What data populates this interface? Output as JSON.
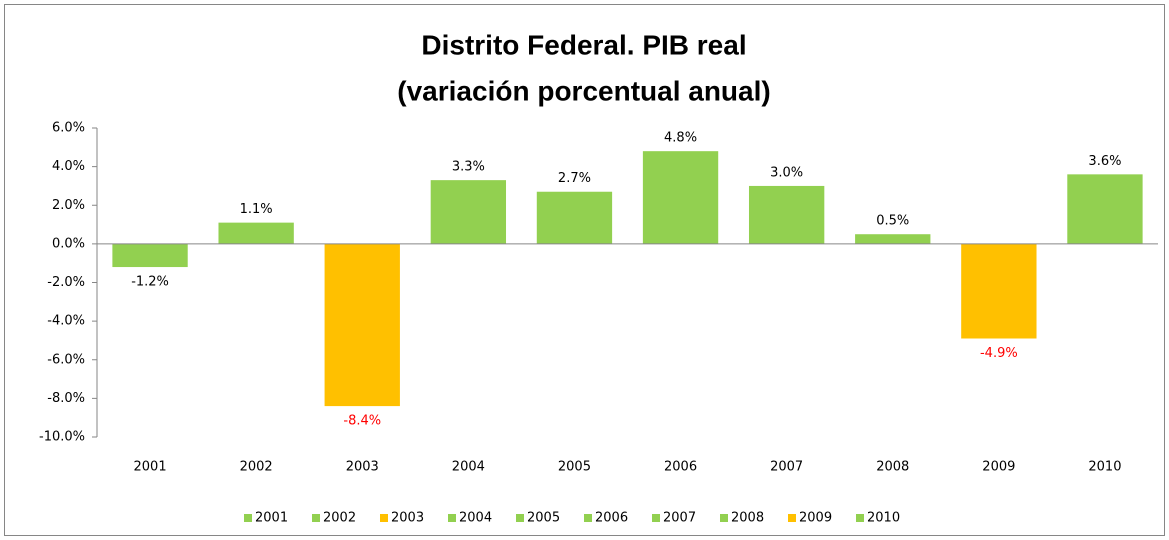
{
  "chart_data": {
    "type": "bar",
    "title": "Distrito Federal. PIB real",
    "subtitle": "(variación porcentual anual)",
    "categories": [
      "2001",
      "2002",
      "2003",
      "2004",
      "2005",
      "2006",
      "2007",
      "2008",
      "2009",
      "2010"
    ],
    "values": [
      -1.2,
      1.1,
      -8.4,
      3.3,
      2.7,
      4.8,
      3.0,
      0.5,
      -4.9,
      3.6
    ],
    "value_labels": [
      "-1.2%",
      "1.1%",
      "-8.4%",
      "3.3%",
      "2.7%",
      "4.8%",
      "3.0%",
      "0.5%",
      "-4.9%",
      "3.6%"
    ],
    "colors": [
      "#92d050",
      "#92d050",
      "#ffc000",
      "#92d050",
      "#92d050",
      "#92d050",
      "#92d050",
      "#92d050",
      "#ffc000",
      "#92d050"
    ],
    "value_label_colors": [
      "#000000",
      "#000000",
      "#ff0000",
      "#000000",
      "#000000",
      "#000000",
      "#000000",
      "#000000",
      "#ff0000",
      "#000000"
    ],
    "ylim": [
      -10,
      6
    ],
    "yticks": [
      {
        "value": -10,
        "label": "-10.0%"
      },
      {
        "value": -8,
        "label": "-8.0%"
      },
      {
        "value": -6,
        "label": "-6.0%"
      },
      {
        "value": -4,
        "label": "-4.0%"
      },
      {
        "value": -2,
        "label": "-2.0%"
      },
      {
        "value": 0,
        "label": "0.0%"
      },
      {
        "value": 2,
        "label": "2.0%"
      },
      {
        "value": 4,
        "label": "4.0%"
      },
      {
        "value": 6,
        "label": "6.0%"
      }
    ],
    "grid": false,
    "legend": "bottom"
  }
}
